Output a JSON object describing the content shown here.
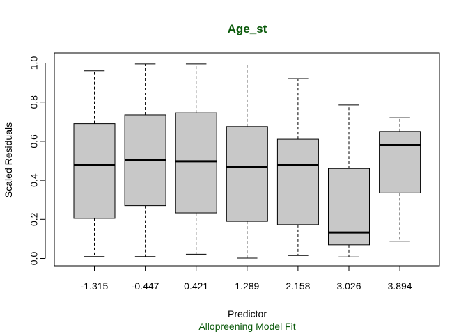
{
  "chart_data": {
    "type": "boxplot",
    "title": "Age_st",
    "xlabel": "Predictor",
    "ylabel": "Scaled Residuals",
    "subtitle": "Allopreening Model Fit",
    "categories": [
      "-1.315",
      "-0.447",
      "0.421",
      "1.289",
      "2.158",
      "3.026",
      "3.894"
    ],
    "boxes": [
      {
        "min": 0.01,
        "q1": 0.205,
        "median": 0.48,
        "q3": 0.69,
        "max": 0.96
      },
      {
        "min": 0.01,
        "q1": 0.27,
        "median": 0.505,
        "q3": 0.735,
        "max": 0.995
      },
      {
        "min": 0.022,
        "q1": 0.233,
        "median": 0.497,
        "q3": 0.745,
        "max": 0.995
      },
      {
        "min": 0.002,
        "q1": 0.19,
        "median": 0.468,
        "q3": 0.675,
        "max": 1.0
      },
      {
        "min": 0.015,
        "q1": 0.173,
        "median": 0.478,
        "q3": 0.61,
        "max": 0.92
      },
      {
        "min": 0.008,
        "q1": 0.07,
        "median": 0.133,
        "q3": 0.46,
        "max": 0.785
      },
      {
        "min": 0.088,
        "q1": 0.335,
        "median": 0.58,
        "q3": 0.65,
        "max": 0.72
      }
    ],
    "ylim": [
      0.0,
      1.0
    ],
    "yticks": [
      "0.0",
      "0.2",
      "0.4",
      "0.6",
      "0.8",
      "1.0"
    ],
    "ytick_values": [
      0.0,
      0.2,
      0.4,
      0.6,
      0.8,
      1.0
    ],
    "grid": false,
    "legend": "none",
    "colors": {
      "box_fill": "#c8c8c8",
      "box_stroke": "#000000",
      "title": "#0b5a0b",
      "subtitle": "#0b5a0b",
      "text": "#000000"
    }
  }
}
